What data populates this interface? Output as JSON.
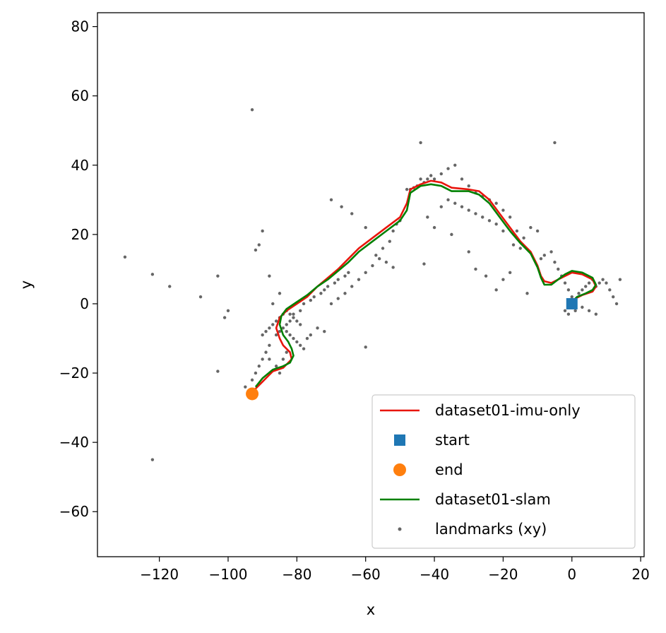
{
  "chart_data": {
    "type": "scatter",
    "title": "",
    "xlabel": "x",
    "ylabel": "y",
    "xlim": [
      -138,
      21
    ],
    "ylim": [
      -73,
      84
    ],
    "xticks": [
      {
        "value": -120,
        "label": "−120"
      },
      {
        "value": -100,
        "label": "−100"
      },
      {
        "value": -80,
        "label": "−80"
      },
      {
        "value": -60,
        "label": "−60"
      },
      {
        "value": -40,
        "label": "−40"
      },
      {
        "value": -20,
        "label": "−20"
      },
      {
        "value": 0,
        "label": "0"
      },
      {
        "value": 20,
        "label": "20"
      }
    ],
    "yticks": [
      {
        "value": -60,
        "label": "−60"
      },
      {
        "value": -40,
        "label": "−40"
      },
      {
        "value": -20,
        "label": "−20"
      },
      {
        "value": 0,
        "label": "0"
      },
      {
        "value": 20,
        "label": "20"
      },
      {
        "value": 40,
        "label": "40"
      },
      {
        "value": 60,
        "label": "60"
      },
      {
        "value": 80,
        "label": "80"
      }
    ],
    "grid": false,
    "legend_position": "lower-right",
    "series": [
      {
        "name": "dataset01-imu-only",
        "kind": "line",
        "color": "#e8150c",
        "points": [
          [
            0,
            0
          ],
          [
            1,
            1.5
          ],
          [
            3,
            2.5
          ],
          [
            6,
            3.5
          ],
          [
            7,
            5
          ],
          [
            6,
            7
          ],
          [
            3,
            8.5
          ],
          [
            0,
            9
          ],
          [
            -2,
            8
          ],
          [
            -4,
            7
          ],
          [
            -6,
            6
          ],
          [
            -8,
            6.5
          ],
          [
            -9,
            8
          ],
          [
            -10,
            11
          ],
          [
            -12,
            15
          ],
          [
            -15,
            18
          ],
          [
            -18,
            22
          ],
          [
            -21,
            26
          ],
          [
            -24,
            30
          ],
          [
            -27,
            32.5
          ],
          [
            -30,
            33
          ],
          [
            -35,
            33.5
          ],
          [
            -38,
            35
          ],
          [
            -41,
            35.5
          ],
          [
            -44,
            34.5
          ],
          [
            -47,
            33
          ],
          [
            -48,
            29
          ],
          [
            -50,
            25
          ],
          [
            -54,
            22
          ],
          [
            -58,
            19
          ],
          [
            -62,
            16
          ],
          [
            -65,
            13
          ],
          [
            -68,
            10
          ],
          [
            -71,
            7.5
          ],
          [
            -74,
            5
          ],
          [
            -77,
            2
          ],
          [
            -80,
            0
          ],
          [
            -83,
            -2
          ],
          [
            -85,
            -4
          ],
          [
            -86,
            -7
          ],
          [
            -85,
            -10
          ],
          [
            -84,
            -12
          ],
          [
            -82,
            -14
          ],
          [
            -81.5,
            -16
          ],
          [
            -82.5,
            -17
          ],
          [
            -84,
            -18.5
          ],
          [
            -87,
            -19.5
          ],
          [
            -90,
            -22.5
          ],
          [
            -93,
            -25.5
          ]
        ]
      },
      {
        "name": "start",
        "kind": "square",
        "color": "#1f77b4",
        "points": [
          [
            0,
            0
          ]
        ]
      },
      {
        "name": "end",
        "kind": "circle",
        "color": "#ff7f0e",
        "points": [
          [
            -93,
            -26
          ]
        ]
      },
      {
        "name": "dataset01-slam",
        "kind": "line",
        "color": "#008000",
        "points": [
          [
            0,
            0.5
          ],
          [
            1.5,
            2
          ],
          [
            4,
            3
          ],
          [
            6,
            4
          ],
          [
            7,
            5.5
          ],
          [
            6,
            7.5
          ],
          [
            3,
            9
          ],
          [
            0,
            9.5
          ],
          [
            -2,
            8.5
          ],
          [
            -4,
            7
          ],
          [
            -6,
            5.5
          ],
          [
            -8,
            5.5
          ],
          [
            -9,
            7.5
          ],
          [
            -10,
            10.5
          ],
          [
            -12,
            14.5
          ],
          [
            -15,
            17.5
          ],
          [
            -18,
            21
          ],
          [
            -21,
            25
          ],
          [
            -24,
            29
          ],
          [
            -27,
            31.5
          ],
          [
            -30,
            32.5
          ],
          [
            -35,
            32.5
          ],
          [
            -38,
            34
          ],
          [
            -41,
            34.5
          ],
          [
            -44,
            34
          ],
          [
            -47,
            32
          ],
          [
            -48,
            27
          ],
          [
            -50,
            24
          ],
          [
            -54,
            21
          ],
          [
            -58,
            18
          ],
          [
            -62,
            15
          ],
          [
            -65,
            12
          ],
          [
            -68,
            9.5
          ],
          [
            -71,
            7
          ],
          [
            -74,
            5
          ],
          [
            -77,
            2.5
          ],
          [
            -80,
            0.5
          ],
          [
            -83,
            -1.5
          ],
          [
            -84.5,
            -3.5
          ],
          [
            -85,
            -6
          ],
          [
            -84,
            -9
          ],
          [
            -82.5,
            -11
          ],
          [
            -81.5,
            -13
          ],
          [
            -81,
            -15
          ],
          [
            -82,
            -17
          ],
          [
            -84,
            -18
          ],
          [
            -87,
            -19
          ],
          [
            -90,
            -21.5
          ],
          [
            -92,
            -24
          ]
        ]
      },
      {
        "name": "landmarks (xy)",
        "kind": "points",
        "color": "#000000",
        "points": [
          [
            -93,
            56
          ],
          [
            -44,
            46.5
          ],
          [
            -5,
            46.5
          ],
          [
            -130,
            13.5
          ],
          [
            -122,
            8.5
          ],
          [
            -117,
            5
          ],
          [
            -108,
            2
          ],
          [
            -103,
            8
          ],
          [
            -100,
            -2
          ],
          [
            -101,
            -4
          ],
          [
            -103,
            -19.5
          ],
          [
            -122,
            -45
          ],
          [
            -60,
            -12.5
          ],
          [
            -90,
            21
          ],
          [
            -92,
            15.5
          ],
          [
            -91,
            17
          ],
          [
            -88,
            8
          ],
          [
            -85,
            3
          ],
          [
            -87,
            0
          ],
          [
            -74,
            -7
          ],
          [
            -72,
            -8
          ],
          [
            -70,
            0
          ],
          [
            -68,
            1.5
          ],
          [
            -66,
            3
          ],
          [
            -64,
            5
          ],
          [
            -62,
            7
          ],
          [
            -60,
            9
          ],
          [
            -58,
            11
          ],
          [
            -56,
            13
          ],
          [
            -55,
            16
          ],
          [
            -53,
            18
          ],
          [
            -52,
            21
          ],
          [
            -51,
            23
          ],
          [
            -50,
            24
          ],
          [
            -52,
            10.5
          ],
          [
            -54,
            12
          ],
          [
            -57,
            14
          ],
          [
            -60,
            22
          ],
          [
            -64,
            26
          ],
          [
            -67,
            28
          ],
          [
            -70,
            30
          ],
          [
            -43,
            11.5
          ],
          [
            -48,
            33
          ],
          [
            -47,
            33
          ],
          [
            -46,
            33.5
          ],
          [
            -45,
            34
          ],
          [
            -44,
            36
          ],
          [
            -43,
            35
          ],
          [
            -42,
            36
          ],
          [
            -41,
            37
          ],
          [
            -40,
            36
          ],
          [
            -38,
            37.5
          ],
          [
            -36,
            39
          ],
          [
            -34,
            40
          ],
          [
            -32,
            36
          ],
          [
            -30,
            34
          ],
          [
            -28,
            32
          ],
          [
            -26,
            31
          ],
          [
            -24,
            30
          ],
          [
            -22,
            29
          ],
          [
            -20,
            27
          ],
          [
            -18,
            25
          ],
          [
            -16,
            21
          ],
          [
            -14,
            19
          ],
          [
            -12,
            22
          ],
          [
            -10,
            21
          ],
          [
            -9,
            13
          ],
          [
            -8,
            14
          ],
          [
            -6,
            15
          ],
          [
            -5,
            12
          ],
          [
            -4,
            10
          ],
          [
            -3,
            8
          ],
          [
            -2,
            6
          ],
          [
            -1,
            4
          ],
          [
            0,
            2
          ],
          [
            1,
            1
          ],
          [
            2,
            3
          ],
          [
            3,
            4
          ],
          [
            4,
            5
          ],
          [
            5,
            6
          ],
          [
            6,
            7
          ],
          [
            7,
            5
          ],
          [
            8,
            6
          ],
          [
            9,
            7
          ],
          [
            10,
            6
          ],
          [
            11,
            4
          ],
          [
            12,
            2
          ],
          [
            13,
            0
          ],
          [
            14,
            7
          ],
          [
            -2,
            -2
          ],
          [
            -1,
            -3
          ],
          [
            1,
            -2
          ],
          [
            3,
            -1
          ],
          [
            5,
            -2
          ],
          [
            7,
            -3
          ],
          [
            -18,
            9
          ],
          [
            -20,
            7
          ],
          [
            -25,
            8
          ],
          [
            -28,
            10
          ],
          [
            -30,
            15
          ],
          [
            -35,
            20
          ],
          [
            -40,
            22
          ],
          [
            -42,
            25
          ],
          [
            -38,
            28
          ],
          [
            -36,
            30
          ],
          [
            -34,
            29
          ],
          [
            -32,
            28
          ],
          [
            -30,
            27
          ],
          [
            -28,
            26
          ],
          [
            -26,
            25
          ],
          [
            -24,
            24
          ],
          [
            -22,
            23
          ],
          [
            -20,
            21
          ],
          [
            -17,
            17
          ],
          [
            -15,
            16
          ],
          [
            -13,
            3
          ],
          [
            -22,
            4
          ],
          [
            -82,
            -5
          ],
          [
            -83,
            -6
          ],
          [
            -84,
            -7
          ],
          [
            -85,
            -8
          ],
          [
            -86,
            -9
          ],
          [
            -83,
            -8
          ],
          [
            -82,
            -9
          ],
          [
            -81,
            -10
          ],
          [
            -80,
            -11
          ],
          [
            -79,
            -12
          ],
          [
            -78,
            -13
          ],
          [
            -77,
            -10
          ],
          [
            -76,
            -9
          ],
          [
            -79,
            -6
          ],
          [
            -80,
            -5
          ],
          [
            -81,
            -4
          ],
          [
            -82,
            -3
          ],
          [
            -83,
            -2
          ],
          [
            -84,
            -3
          ],
          [
            -85,
            -4
          ],
          [
            -86,
            -5
          ],
          [
            -87,
            -6
          ],
          [
            -88,
            -7
          ],
          [
            -89,
            -8
          ],
          [
            -90,
            -9
          ],
          [
            -88,
            -12
          ],
          [
            -89,
            -14
          ],
          [
            -90,
            -16
          ],
          [
            -91,
            -18
          ],
          [
            -92,
            -20
          ],
          [
            -93,
            -22
          ],
          [
            -95,
            -24
          ],
          [
            -88,
            -16
          ],
          [
            -86,
            -18
          ],
          [
            -85,
            -20
          ],
          [
            -84,
            -16
          ],
          [
            -83,
            -14
          ],
          [
            -81,
            -3
          ],
          [
            -79,
            -2
          ],
          [
            -78,
            0
          ],
          [
            -76,
            1
          ],
          [
            -75,
            2
          ],
          [
            -73,
            3
          ],
          [
            -72,
            4
          ],
          [
            -71,
            5
          ],
          [
            -69,
            6
          ],
          [
            -68,
            7
          ],
          [
            -66,
            8
          ],
          [
            -65,
            9
          ]
        ]
      }
    ]
  }
}
